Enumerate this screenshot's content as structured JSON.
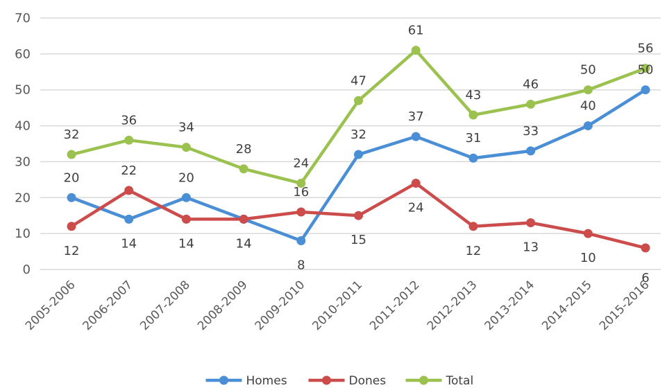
{
  "chart_data": {
    "type": "line",
    "categories": [
      "2005-2006",
      "2006-2007",
      "2007-2008",
      "2008-2009",
      "2009-2010",
      "2010-2011",
      "2011-2012",
      "2012-2013",
      "2013-2014",
      "2014-2015",
      "2015-2016"
    ],
    "series": [
      {
        "name": "Homes",
        "color": "#4a8fd6",
        "values": [
          20,
          14,
          20,
          14,
          8,
          32,
          37,
          31,
          33,
          40,
          50
        ]
      },
      {
        "name": "Dones",
        "color": "#cc4b4b",
        "values": [
          12,
          22,
          14,
          14,
          16,
          15,
          24,
          12,
          13,
          10,
          6
        ]
      },
      {
        "name": "Total",
        "color": "#9bc14f",
        "values": [
          32,
          36,
          34,
          28,
          24,
          47,
          61,
          43,
          46,
          50,
          56
        ]
      }
    ],
    "ylim": [
      0,
      70
    ],
    "yticks": [
      0,
      10,
      20,
      30,
      40,
      50,
      60,
      70
    ],
    "grid": true,
    "legend_position": "bottom",
    "title": "",
    "xlabel": "",
    "ylabel": ""
  }
}
